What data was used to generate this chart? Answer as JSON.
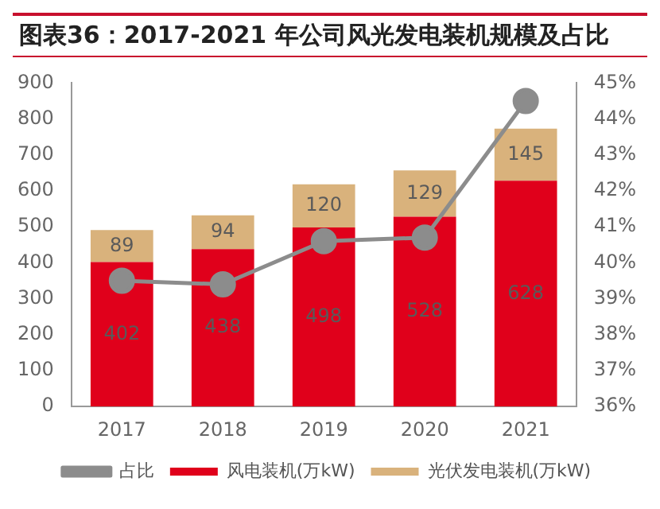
{
  "chart_data": {
    "type": "bar",
    "title": "图表36：2017-2021 年公司风光发电装机规模及占比",
    "stacked": true,
    "categories": [
      "2017",
      "2018",
      "2019",
      "2020",
      "2021"
    ],
    "series": [
      {
        "name": "风电装机(万kW)",
        "color": "#e0001b",
        "values": [
          402,
          438,
          498,
          528,
          628
        ],
        "value_labels": [
          "402",
          "438",
          "498",
          "528",
          "628"
        ]
      },
      {
        "name": "光伏发电装机(万kW)",
        "color": "#d9b27c",
        "values": [
          89,
          94,
          120,
          129,
          145
        ],
        "value_labels": [
          "89",
          "94",
          "120",
          "129",
          "145"
        ]
      },
      {
        "name": "占比",
        "type": "line",
        "axis": "y2",
        "color": "#8c8c8c",
        "marker": "circle",
        "values": [
          39.5,
          39.4,
          40.6,
          40.7,
          44.5
        ]
      }
    ],
    "ylim": [
      0,
      900
    ],
    "yticks": [
      0,
      100,
      200,
      300,
      400,
      500,
      600,
      700,
      800,
      900
    ],
    "y2lim": [
      36,
      45
    ],
    "y2ticks": [
      {
        "value": 36,
        "label": "36%"
      },
      {
        "value": 37,
        "label": "37%"
      },
      {
        "value": 38,
        "label": "38%"
      },
      {
        "value": 39,
        "label": "39%"
      },
      {
        "value": 40,
        "label": "40%"
      },
      {
        "value": 41,
        "label": "41%"
      },
      {
        "value": 42,
        "label": "42%"
      },
      {
        "value": 43,
        "label": "43%"
      },
      {
        "value": 44,
        "label": "44%"
      },
      {
        "value": 45,
        "label": "45%"
      }
    ],
    "grid": false,
    "legend": "bottom"
  }
}
